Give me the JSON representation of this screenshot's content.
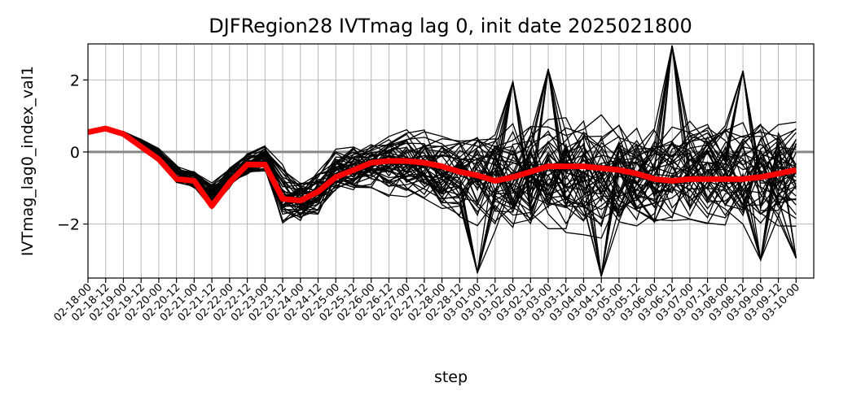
{
  "chart_data": {
    "type": "line",
    "title": "DJFRegion28 IVTmag lag 0, init date 2025021800",
    "xlabel": "step",
    "ylabel": "IVTmag_lag0_index_val1",
    "categories": [
      "02-18-00",
      "02-18-12",
      "02-19-00",
      "02-19-12",
      "02-20-00",
      "02-20-12",
      "02-21-00",
      "02-21-12",
      "02-22-00",
      "02-22-12",
      "02-23-00",
      "02-23-12",
      "02-24-00",
      "02-24-12",
      "02-25-00",
      "02-25-12",
      "02-26-00",
      "02-26-12",
      "02-27-00",
      "02-27-12",
      "02-28-00",
      "02-28-12",
      "03-01-00",
      "03-01-12",
      "03-02-00",
      "03-02-12",
      "03-03-00",
      "03-03-12",
      "03-04-00",
      "03-04-12",
      "03-05-00",
      "03-05-12",
      "03-06-00",
      "03-06-12",
      "03-07-00",
      "03-07-12",
      "03-08-00",
      "03-08-12",
      "03-09-00",
      "03-09-12",
      "03-10-00"
    ],
    "yticks": [
      -2,
      0,
      2
    ],
    "ytick_labels": [
      "−2",
      "0",
      "2"
    ],
    "ylim": [
      -3.5,
      3.0
    ],
    "xlim": [
      0,
      41
    ],
    "grid": true,
    "zero_line": {
      "value": 0,
      "color": "#888888"
    },
    "ensemble": {
      "count": 50,
      "color": "#000000",
      "upper": [
        0.55,
        0.65,
        0.6,
        0.4,
        0.15,
        -0.3,
        -0.4,
        -0.75,
        -0.3,
        0.1,
        0.35,
        -0.1,
        -0.5,
        -0.2,
        0.3,
        0.45,
        0.55,
        0.7,
        0.8,
        0.8,
        0.85,
        1.0,
        1.1,
        1.15,
        1.3,
        1.4,
        1.5,
        1.45,
        1.45,
        1.45,
        1.35,
        1.35,
        1.3,
        1.3,
        1.3,
        1.35,
        1.35,
        1.4,
        1.45,
        1.5,
        1.6
      ],
      "lower": [
        0.55,
        0.6,
        0.45,
        0.2,
        -0.25,
        -1.0,
        -1.2,
        -1.75,
        -1.25,
        -0.8,
        -0.65,
        -2.4,
        -2.2,
        -2.0,
        -1.4,
        -1.3,
        -1.2,
        -1.4,
        -1.5,
        -1.7,
        -2.0,
        -2.2,
        -2.45,
        -2.5,
        -2.55,
        -2.6,
        -2.7,
        -2.7,
        -2.65,
        -2.75,
        -2.65,
        -2.6,
        -2.55,
        -2.6,
        -2.55,
        -2.55,
        -2.55,
        -2.6,
        -2.6,
        -2.65,
        -2.65
      ],
      "outliers": [
        {
          "x": 29,
          "y": -3.45
        },
        {
          "x": 33,
          "y": 2.95
        },
        {
          "x": 26,
          "y": 2.3
        },
        {
          "x": 37,
          "y": 2.25
        },
        {
          "x": 22,
          "y": -3.35
        },
        {
          "x": 40,
          "y": -2.95
        },
        {
          "x": 24,
          "y": 1.95
        },
        {
          "x": 38,
          "y": -3.0
        }
      ]
    },
    "series": [
      {
        "color": "#ff0000",
        "values": [
          0.55,
          0.65,
          0.5,
          0.15,
          -0.2,
          -0.75,
          -0.8,
          -1.5,
          -0.85,
          -0.35,
          -0.35,
          -1.3,
          -1.35,
          -1.1,
          -0.7,
          -0.5,
          -0.3,
          -0.25,
          -0.25,
          -0.3,
          -0.4,
          -0.55,
          -0.65,
          -0.8,
          -0.7,
          -0.55,
          -0.4,
          -0.4,
          -0.4,
          -0.45,
          -0.5,
          -0.6,
          -0.75,
          -0.8,
          -0.75,
          -0.75,
          -0.75,
          -0.75,
          -0.7,
          -0.6,
          -0.5
        ]
      }
    ]
  }
}
